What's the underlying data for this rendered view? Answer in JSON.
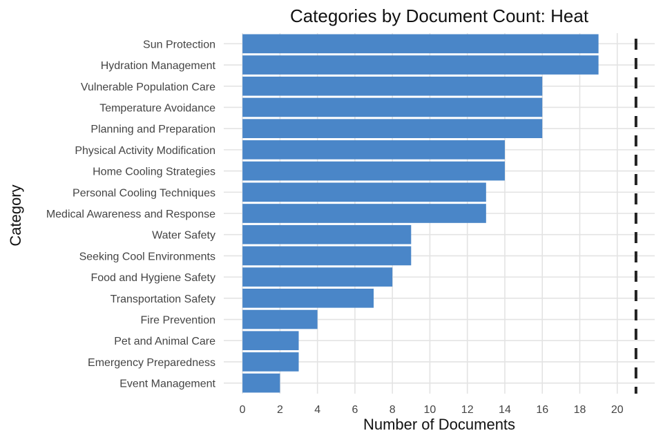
{
  "chart_data": {
    "type": "bar",
    "orientation": "horizontal",
    "title": "Categories by Document Count: Heat",
    "xlabel": "Number of Documents",
    "ylabel": "Category",
    "xlim": [
      -1,
      22
    ],
    "xticks": [
      0,
      2,
      4,
      6,
      8,
      10,
      12,
      14,
      16,
      18,
      20
    ],
    "grid": true,
    "bar_color": "#4a86c8",
    "reference_line": {
      "value": 21,
      "style": "dashed",
      "color": "#222222"
    },
    "categories": [
      "Sun Protection",
      "Hydration Management",
      "Vulnerable Population Care",
      "Temperature Avoidance",
      "Planning and Preparation",
      "Physical Activity Modification",
      "Home Cooling Strategies",
      "Personal Cooling Techniques",
      "Medical Awareness and Response",
      "Water Safety",
      "Seeking Cool Environments",
      "Food and Hygiene Safety",
      "Transportation Safety",
      "Fire Prevention",
      "Pet and Animal Care",
      "Emergency Preparedness",
      "Event Management"
    ],
    "values": [
      19,
      19,
      16,
      16,
      16,
      14,
      14,
      13,
      13,
      9,
      9,
      8,
      7,
      4,
      3,
      3,
      2
    ]
  }
}
